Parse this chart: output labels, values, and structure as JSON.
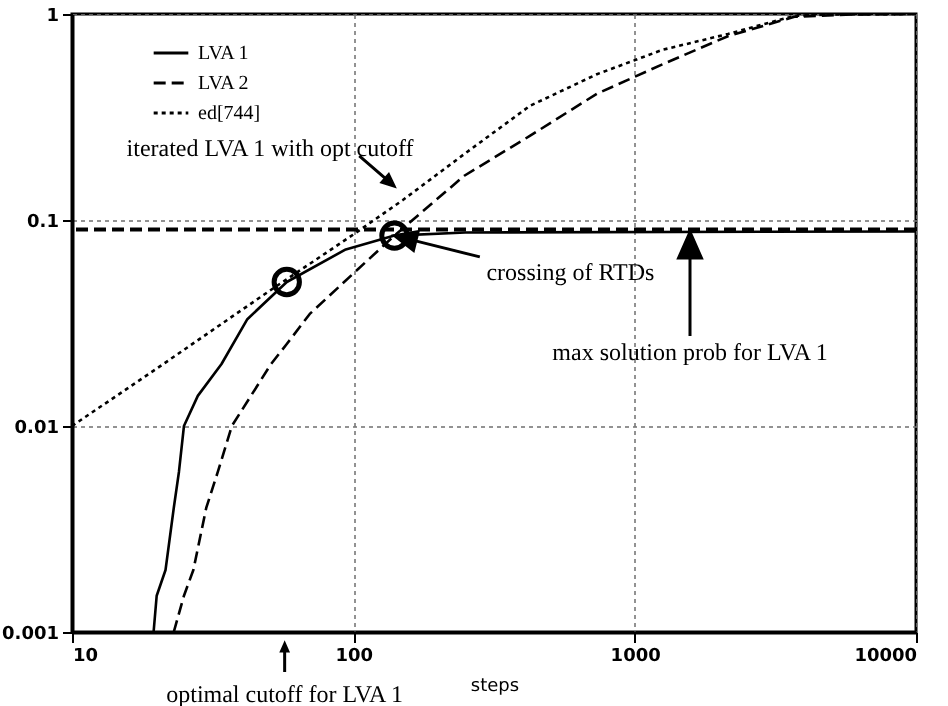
{
  "chart_data": {
    "type": "line",
    "xlabel": "steps",
    "log": "xy",
    "grid": true,
    "legend": "top left",
    "xlim": [
      10,
      10000
    ],
    "ylim": [
      0.001,
      1
    ],
    "xticks": [
      10,
      100,
      1000,
      10000
    ],
    "yticks": [
      0.001,
      0.01,
      0.1,
      1
    ],
    "series": [
      {
        "name": "LVA 1",
        "color": "#000000",
        "line_style": "solid",
        "x": [
          19.5,
          20,
          21.5,
          23,
          24,
          25,
          28,
          34,
          42,
          58,
          94,
          140,
          250,
          10000
        ],
        "values": [
          0.001,
          0.0015,
          0.002,
          0.004,
          0.006,
          0.01,
          0.014,
          0.02,
          0.033,
          0.05,
          0.072,
          0.084,
          0.087,
          0.088
        ]
      },
      {
        "name": "LVA 2",
        "color": "#000000",
        "line_style": "dashed",
        "x": [
          23,
          25,
          27,
          30,
          33,
          37,
          51,
          58,
          70,
          100,
          140,
          248,
          424,
          734,
          1256,
          2145,
          3700,
          6000,
          10000
        ],
        "values": [
          0.001,
          0.0015,
          0.002,
          0.004,
          0.006,
          0.01,
          0.02,
          0.025,
          0.035,
          0.055,
          0.084,
          0.164,
          0.256,
          0.41,
          0.57,
          0.78,
          0.97,
          0.995,
          1
        ]
      },
      {
        "name": "ed[744]",
        "color": "#000000",
        "line_style": "dotted",
        "x": [
          10,
          20,
          50,
          100,
          150,
          248,
          424,
          734,
          1256,
          2145,
          3700,
          5000,
          10000
        ],
        "values": [
          0.01,
          0.019,
          0.045,
          0.085,
          0.125,
          0.209,
          0.358,
          0.51,
          0.67,
          0.8,
          0.98,
          0.995,
          1
        ]
      },
      {
        "type": "scatter",
        "color": "#000000",
        "marker": "circle",
        "x": [
          58,
          140
        ],
        "values": [
          0.05,
          0.084
        ]
      }
    ],
    "ref_lines": [
      {
        "axis": "y",
        "value": 0.09,
        "color": "#000000",
        "line_style": "dashed"
      }
    ],
    "annotations": [
      "iterated LVA 1 with opt cutoff",
      {
        "text": "crossing of RTDs",
        "x": 140,
        "y": 0.084
      },
      "max solution prob for LVA 1",
      {
        "text": "optimal cutoff for LVA 1",
        "x": 57
      }
    ]
  }
}
